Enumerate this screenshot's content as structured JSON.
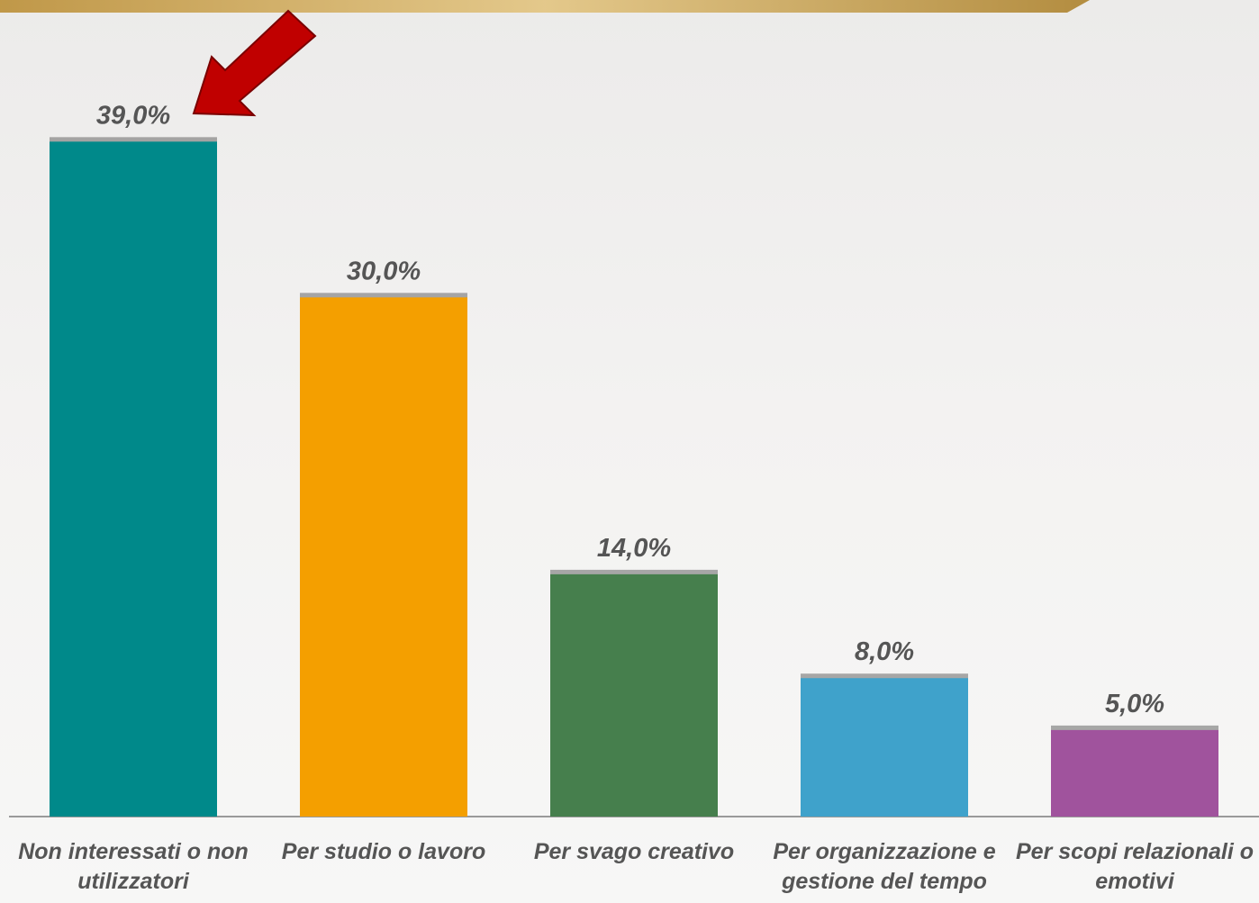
{
  "chart_data": {
    "type": "bar",
    "categories": [
      "Non interessati o non utilizzatori",
      "Per studio o lavoro",
      "Per svago creativo",
      "Per organizzazione e gestione del tempo",
      "Per scopi relazionali o emotivi"
    ],
    "values": [
      39,
      30,
      14,
      8,
      5
    ],
    "value_labels": [
      "39,0%",
      "30,0%",
      "14,0%",
      "8,0%",
      "5,0%"
    ],
    "colors": [
      "#00898a",
      "#f49f00",
      "#467f4d",
      "#3fa2cb",
      "#a0539d"
    ],
    "ylim": [
      0,
      45
    ]
  }
}
